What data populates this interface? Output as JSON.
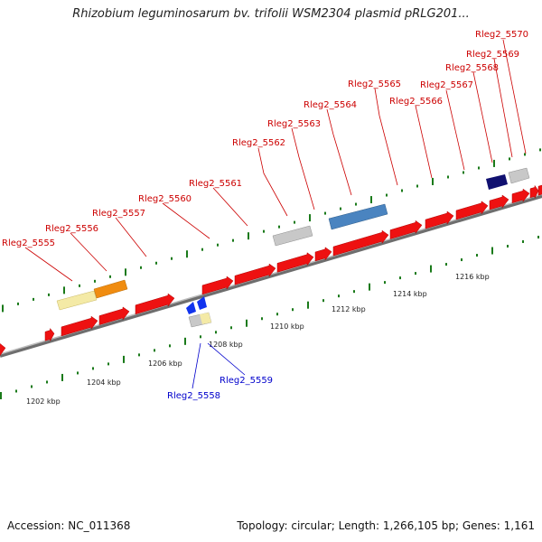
{
  "title": "Rhizobium leguminosarum bv. trifolii WSM2304 plasmid pRLG201...",
  "footer": {
    "accession": "Accession: NC_011368",
    "topology": "Topology: circular; Length: 1,266,105 bp; Genes: 1,161"
  },
  "colors": {
    "forward_gene": "#ee1111",
    "reverse_gene": "#1133ee",
    "backbone": "#888888",
    "tick": "#1a7a1a",
    "forward_label": "#cc0000",
    "reverse_label": "#0000cc",
    "pale_yellow": "#f4eaa6",
    "orange": "#f08c10",
    "steel_blue": "#4a84c0",
    "navy": "#101070",
    "light_grey": "#c8c8c8"
  },
  "ticks": {
    "outer_labels": [
      "1216 kbp",
      "1214 kbp",
      "1212 kbp",
      "1210 kbp",
      "1208 kbp",
      "1206 kbp",
      "1204 kbp",
      "1202 kbp"
    ]
  },
  "genes": {
    "forward_labels": [
      "Rleg2_5555",
      "Rleg2_5556",
      "Rleg2_5557",
      "Rleg2_5560",
      "Rleg2_5561",
      "Rleg2_5562",
      "Rleg2_5563",
      "Rleg2_5564",
      "Rleg2_5565",
      "Rleg2_5566",
      "Rleg2_5567",
      "Rleg2_5568",
      "Rleg2_5569",
      "Rleg2_5570"
    ],
    "reverse_labels": [
      "Rleg2_5558",
      "Rleg2_5559"
    ]
  }
}
